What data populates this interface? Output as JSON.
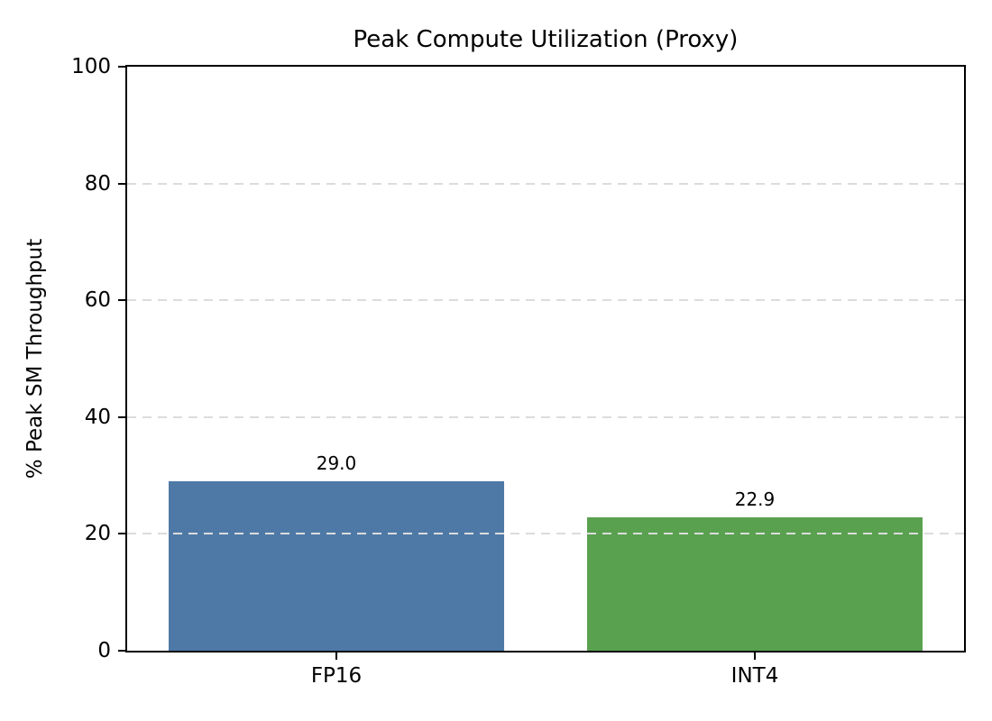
{
  "chart_data": {
    "type": "bar",
    "title": "Peak Compute Utilization (Proxy)",
    "xlabel": "",
    "ylabel": "% Peak SM Throughput",
    "categories": [
      "FP16",
      "INT4"
    ],
    "values": [
      29.0,
      22.9
    ],
    "bar_labels": [
      "29.0",
      "22.9"
    ],
    "bar_colors": [
      "#4E79A7",
      "#59A14F"
    ],
    "ylim": [
      0,
      100
    ],
    "yticks": [
      0,
      20,
      40,
      60,
      80,
      100
    ],
    "bar_width_fraction": 0.8,
    "grid": {
      "axis": "y",
      "style": "dashed",
      "color": "#dcdcdc",
      "above_bars": true
    },
    "legend": "none",
    "frame": "full-box",
    "background": "#ffffff"
  }
}
